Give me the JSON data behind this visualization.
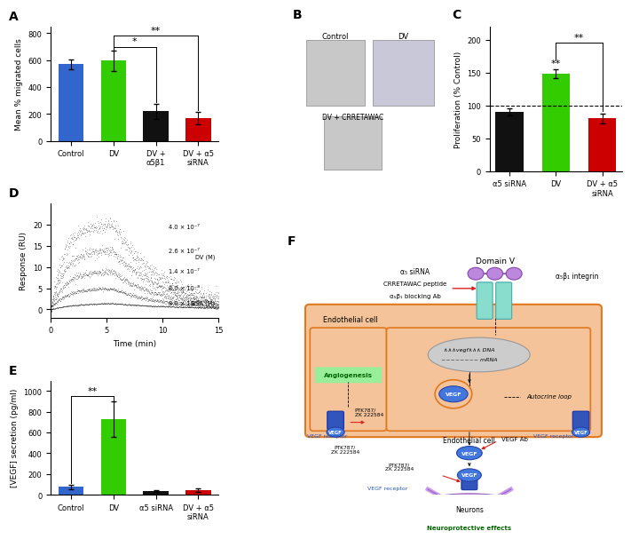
{
  "panel_A": {
    "categories": [
      "Control",
      "DV",
      "DV +\nα5β1",
      "DV + α5\nsiRNA"
    ],
    "values": [
      570,
      595,
      220,
      170
    ],
    "errors": [
      35,
      75,
      55,
      45
    ],
    "colors": [
      "#3366cc",
      "#33cc00",
      "#111111",
      "#cc0000"
    ],
    "ylabel": "Mean % migrated cells",
    "ylim": [
      0,
      850
    ],
    "yticks": [
      0,
      200,
      400,
      600,
      800
    ]
  },
  "panel_C": {
    "categories": [
      "α5 siRNA",
      "DV",
      "DV + α5\nsiRNA"
    ],
    "values": [
      90,
      148,
      80
    ],
    "errors": [
      5,
      7,
      8
    ],
    "colors": [
      "#111111",
      "#33cc00",
      "#cc0000"
    ],
    "ylabel": "Proliferation (% Control)",
    "ylim": [
      0,
      220
    ],
    "yticks": [
      0,
      50,
      100,
      150,
      200
    ],
    "dashed_line": 100
  },
  "panel_D": {
    "xlabel": "Time (min)",
    "ylabel": "Response (RU)",
    "xlim": [
      0,
      15
    ],
    "ylim": [
      -2,
      25
    ],
    "yticks": [
      0,
      5,
      10,
      15,
      20
    ],
    "xticks": [
      0,
      5,
      10,
      15
    ],
    "curves_peak_RU": [
      20,
      14,
      9,
      5,
      1.5
    ],
    "DV_label": "DV (M)",
    "BSA_label": "BSA (M)"
  },
  "panel_E": {
    "categories": [
      "Control",
      "DV",
      "α5 siRNA",
      "DV + α5\nsiRNA"
    ],
    "values": [
      75,
      730,
      35,
      45
    ],
    "errors": [
      25,
      170,
      10,
      15
    ],
    "colors": [
      "#3366cc",
      "#33cc00",
      "#111111",
      "#cc0000"
    ],
    "ylabel": "[VEGF] secretion (pg/ml)",
    "ylim": [
      0,
      1100
    ],
    "yticks": [
      0,
      200,
      400,
      600,
      800,
      1000
    ]
  },
  "colors": {
    "orange_fill": "#f5c399",
    "orange_edge": "#e07820",
    "green_label": "#006600",
    "green_box": "#99ee99",
    "blue_vegf": "#4477dd",
    "blue_dark": "#2244aa",
    "purple_neuron": "#cc99ee",
    "purple_edge": "#9966bb",
    "teal_integrin": "#88ddcc",
    "teal_edge": "#44aaaa",
    "red_inhibit": "#dd2222",
    "text_blue": "#2255cc",
    "gray_nucleus": "#cccccc"
  }
}
